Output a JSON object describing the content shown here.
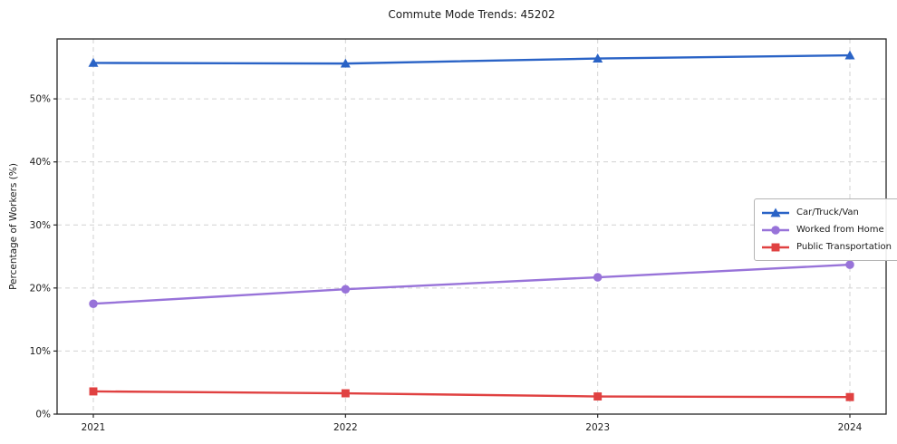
{
  "chart_data": {
    "type": "line",
    "title": "Commute Mode Trends: 45202",
    "xlabel": "",
    "ylabel": "Percentage of Workers (%)",
    "x": [
      2021,
      2022,
      2023,
      2024
    ],
    "xticklabels": [
      "2021",
      "2022",
      "2023",
      "2024"
    ],
    "yticks": [
      0,
      10,
      20,
      30,
      40,
      50
    ],
    "yticklabels": [
      "0%",
      "10%",
      "20%",
      "30%",
      "40%",
      "50%"
    ],
    "ylim": [
      0,
      59.5
    ],
    "grid": "dashed, horizontal and vertical",
    "legend_position": "center right",
    "series": [
      {
        "name": "Car/Truck/Van",
        "color": "#2a63c6",
        "marker": "triangle",
        "values": [
          55.7,
          55.6,
          56.4,
          56.9
        ]
      },
      {
        "name": "Worked from Home",
        "color": "#9873d9",
        "marker": "circle",
        "values": [
          17.5,
          19.8,
          21.7,
          23.7
        ]
      },
      {
        "name": "Public Transportation",
        "color": "#e04141",
        "marker": "square",
        "values": [
          3.6,
          3.3,
          2.8,
          2.7
        ]
      }
    ],
    "colors": {
      "grid": "#d2d2d2",
      "spine": "#262626",
      "text": "#1a1a1a",
      "background": "#ffffff"
    }
  }
}
